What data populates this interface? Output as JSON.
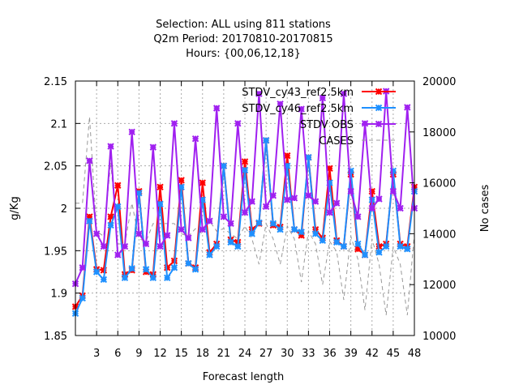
{
  "chart_data": {
    "type": "line",
    "title_lines": [
      "Selection: ALL using   811 stations",
      "Q2m   Period: 20170810-20170815",
      "Hours: {00,06,12,18}"
    ],
    "xlabel": "Forecast length",
    "ylabel": "g/Kg",
    "y2label": "No cases",
    "xlim": [
      0,
      48
    ],
    "ylim": [
      1.85,
      2.15
    ],
    "y2lim": [
      10000,
      20000
    ],
    "xticks": [
      3,
      6,
      9,
      12,
      15,
      18,
      21,
      24,
      27,
      30,
      33,
      36,
      39,
      42,
      45,
      48
    ],
    "yticks": [
      "1.85",
      "1.9",
      "1.95",
      "2",
      "2.05",
      "2.1",
      "2.15"
    ],
    "y2ticks": [
      "10000",
      "12000",
      "14000",
      "16000",
      "18000",
      "20000"
    ],
    "grid": true,
    "legend_position": "top-right",
    "x": [
      0,
      1,
      2,
      3,
      4,
      5,
      6,
      7,
      8,
      9,
      10,
      11,
      12,
      13,
      14,
      15,
      16,
      17,
      18,
      19,
      20,
      21,
      22,
      23,
      24,
      25,
      26,
      27,
      28,
      29,
      30,
      31,
      32,
      33,
      34,
      35,
      36,
      37,
      38,
      39,
      40,
      41,
      42,
      43,
      44,
      45,
      46,
      47,
      48
    ],
    "series": [
      {
        "name": "STDV_cy43_ref2.5km",
        "color": "#ff0000",
        "axis": "y",
        "values": [
          1.884,
          1.897,
          1.99,
          1.928,
          1.927,
          1.99,
          2.027,
          1.922,
          1.927,
          2.02,
          1.925,
          1.922,
          2.025,
          1.93,
          1.938,
          2.033,
          1.935,
          1.93,
          2.03,
          1.948,
          1.958,
          2.05,
          1.963,
          1.96,
          2.055,
          1.975,
          1.982,
          2.08,
          1.98,
          1.978,
          2.062,
          1.975,
          1.968,
          2.06,
          1.975,
          1.965,
          2.047,
          1.962,
          1.955,
          2.04,
          1.952,
          1.945,
          2.02,
          1.955,
          1.958,
          2.04,
          1.958,
          1.955,
          2.025
        ]
      },
      {
        "name": "STDV_cy46_ref2.5km",
        "color": "#1e90ff",
        "axis": "y",
        "values": [
          1.876,
          1.894,
          1.985,
          1.925,
          1.916,
          1.98,
          2.002,
          1.918,
          1.929,
          2.018,
          1.928,
          1.918,
          2.005,
          1.918,
          1.93,
          2.025,
          1.935,
          1.928,
          2.01,
          1.945,
          1.955,
          2.05,
          1.96,
          1.955,
          2.045,
          1.97,
          1.983,
          2.08,
          1.982,
          1.975,
          2.05,
          1.975,
          1.972,
          2.06,
          1.97,
          1.962,
          2.03,
          1.96,
          1.955,
          2.044,
          1.958,
          1.945,
          2.01,
          1.948,
          1.955,
          2.044,
          1.955,
          1.952,
          2.02
        ]
      },
      {
        "name": "STDV OBS",
        "color": "#a020f0",
        "axis": "y",
        "values": [
          1.911,
          1.93,
          2.056,
          1.97,
          1.955,
          2.073,
          1.945,
          1.955,
          2.09,
          1.97,
          1.958,
          2.072,
          1.955,
          1.968,
          2.1,
          1.975,
          1.965,
          2.082,
          1.975,
          1.985,
          2.118,
          1.99,
          1.982,
          2.1,
          1.995,
          2.008,
          2.135,
          2.002,
          2.015,
          2.123,
          2.01,
          2.012,
          2.117,
          2.015,
          2.008,
          2.13,
          1.995,
          2.006,
          2.135,
          2.02,
          1.99,
          2.1,
          2.0,
          2.011,
          2.138,
          2.02,
          2.0,
          2.119,
          2.0
        ]
      },
      {
        "name": "CASES",
        "color": "#999999",
        "axis": "y2",
        "dashed": true,
        "values": [
          15200,
          15200,
          18600,
          14100,
          13900,
          16800,
          13600,
          13600,
          15200,
          13800,
          13700,
          14400,
          14400,
          14400,
          14400,
          14000,
          13900,
          14200,
          14000,
          14500,
          14100,
          14200,
          14000,
          13800,
          14300,
          13800,
          12800,
          14400,
          13800,
          12800,
          14300,
          13800,
          12100,
          14100,
          13600,
          12000,
          13700,
          13300,
          11400,
          13900,
          13000,
          11000,
          13800,
          12800,
          10800,
          13500,
          12800,
          10800,
          14000
        ]
      }
    ]
  }
}
